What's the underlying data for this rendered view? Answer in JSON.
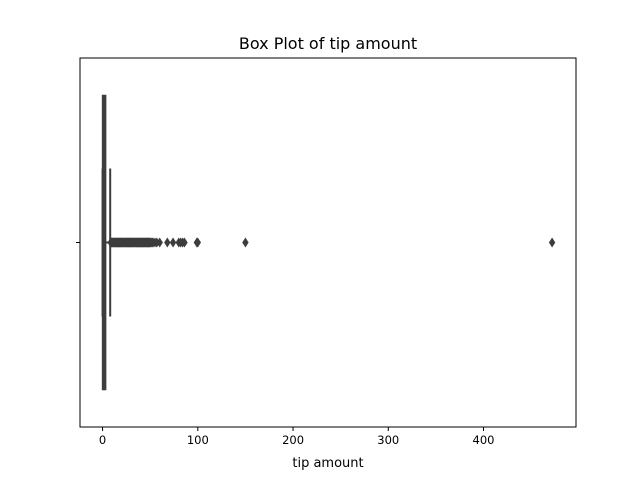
{
  "chart_data": {
    "type": "box",
    "title": "Box Plot of tip amount",
    "xlabel": "tip amount",
    "ylabel": "",
    "xlim": [
      -23.7,
      497.1
    ],
    "x_ticks": [
      0,
      100,
      200,
      300,
      400
    ],
    "x_tick_labels": [
      "0",
      "100",
      "200",
      "300",
      "400"
    ],
    "grid": false,
    "orientation": "horizontal",
    "box": {
      "q1": 0,
      "median": 2.2,
      "q3": 3.2,
      "whisker_low": 0,
      "whisker_high": 8.0
    },
    "outliers": [
      8.5,
      9,
      9.5,
      10,
      10.5,
      11,
      11.5,
      12,
      12.5,
      13,
      13.5,
      14,
      14.5,
      15,
      15.5,
      16,
      16.5,
      17,
      17.5,
      18,
      18.5,
      19,
      19.5,
      20,
      20.5,
      21,
      21.5,
      22,
      22.5,
      23,
      23.5,
      24,
      24.5,
      25,
      25.5,
      26,
      26.5,
      27,
      27.5,
      28,
      28.5,
      29,
      29.5,
      30,
      30.5,
      31,
      31.5,
      32,
      32.5,
      33,
      33.5,
      34,
      34.5,
      35,
      35.5,
      36,
      36.5,
      37,
      37.5,
      38,
      38.5,
      39,
      39.5,
      40,
      40.5,
      41,
      41.5,
      42,
      42.5,
      43,
      43.5,
      44,
      44.5,
      45,
      45.5,
      46,
      46.5,
      47,
      47.5,
      48,
      48.5,
      49,
      49.5,
      50,
      51,
      52,
      53,
      55,
      57,
      60,
      68,
      74,
      80,
      82,
      84,
      86,
      99,
      100,
      150,
      472
    ],
    "colors": {
      "box_edge": "#3d3d3d",
      "outlier": "#3d3d3d",
      "axis": "#000000"
    }
  }
}
